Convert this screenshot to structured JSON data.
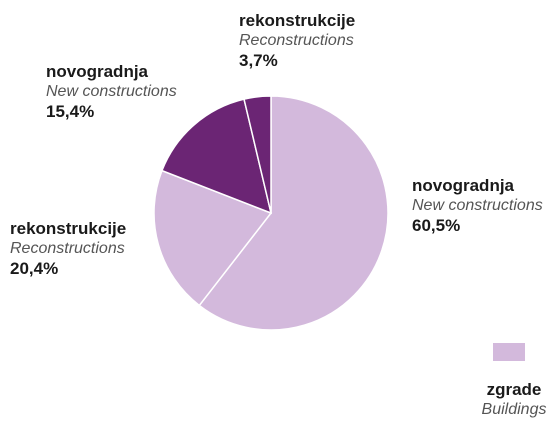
{
  "chart_data": {
    "type": "pie",
    "slices": [
      {
        "label": "novogradnja",
        "label_en": "New constructions",
        "value": 60.5,
        "percent_text": "60,5%",
        "color": "#d3b9dc"
      },
      {
        "label": "rekonstrukcije",
        "label_en": "Reconstructions",
        "value": 20.4,
        "percent_text": "20,4%",
        "color": "#d3b9dc"
      },
      {
        "label": "novogradnja",
        "label_en": "New constructions",
        "value": 15.4,
        "percent_text": "15,4%",
        "color": "#6b2574"
      },
      {
        "label": "rekonstrukcije",
        "label_en": "Reconstructions",
        "value": 3.7,
        "percent_text": "3,7%",
        "color": "#6b2574"
      }
    ],
    "legend": [
      {
        "label": "zgrade",
        "label_en": "Buildings",
        "color": "#d3b9dc"
      }
    ],
    "legend_position": "bottom-right"
  }
}
